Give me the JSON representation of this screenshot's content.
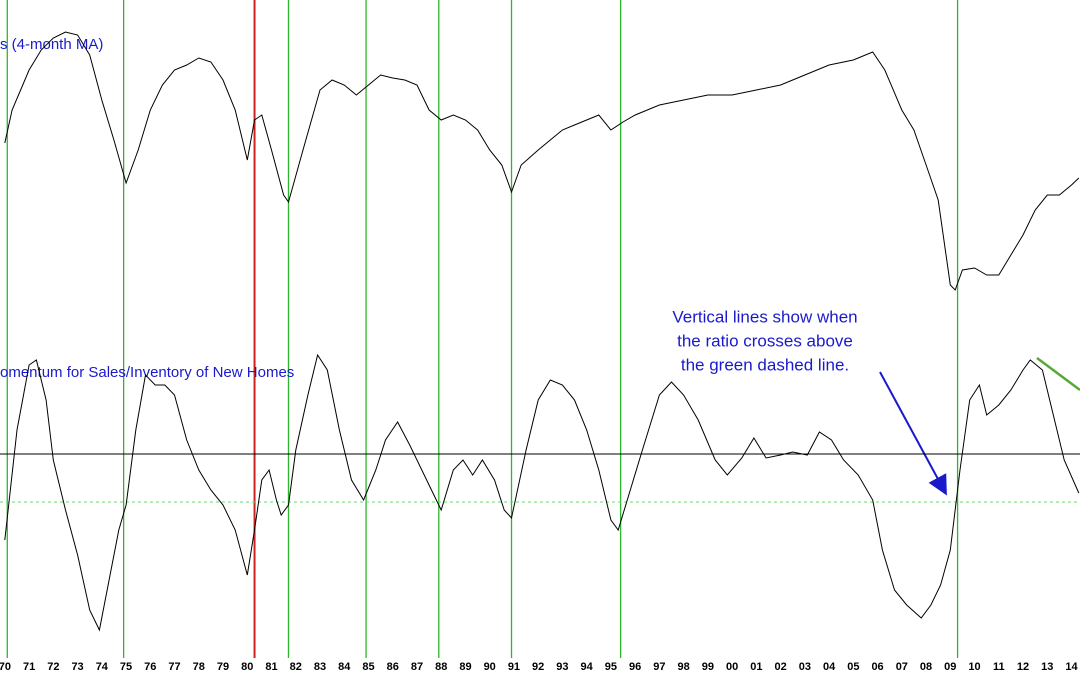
{
  "chart_data": [
    {
      "type": "line",
      "title": "s (4-month MA)",
      "color": "#000000",
      "xlim": [
        1969.8,
        2014.35
      ],
      "ylim": [
        0,
        300
      ],
      "x": [
        1970.0,
        1970.3,
        1971,
        1971.5,
        1972,
        1972.5,
        1973,
        1973.5,
        1974,
        1974.5,
        1975,
        1975.5,
        1976,
        1976.5,
        1977,
        1977.5,
        1978,
        1978.5,
        1979,
        1979.5,
        1980,
        1980.3,
        1980.6,
        1981,
        1981.5,
        1981.7,
        1982.3,
        1983,
        1983.5,
        1984,
        1984.5,
        1985,
        1985.5,
        1986,
        1986.5,
        1987,
        1987.5,
        1988,
        1988.5,
        1989,
        1989.5,
        1990,
        1990.5,
        1990.9,
        1991.3,
        1992,
        1992.5,
        1993,
        1993.5,
        1994,
        1994.5,
        1995,
        1995.5,
        1996,
        1997,
        1998,
        1999,
        2000,
        2001,
        2002,
        2003,
        2004,
        2005,
        2005.8,
        2006.3,
        2007,
        2007.5,
        2008,
        2008.5,
        2009,
        2009.2,
        2009.5,
        2010,
        2010.5,
        2011,
        2011.5,
        2012,
        2012.5,
        2013,
        2013.5,
        2014,
        2014.3
      ],
      "values": [
        157,
        190,
        230,
        250,
        262,
        268,
        265,
        245,
        200,
        160,
        117,
        150,
        190,
        215,
        230,
        235,
        242,
        238,
        220,
        190,
        140,
        180,
        185,
        150,
        105,
        98,
        150,
        210,
        220,
        215,
        205,
        215,
        225,
        222,
        220,
        215,
        190,
        180,
        185,
        180,
        170,
        150,
        135,
        108,
        135,
        150,
        160,
        170,
        175,
        180,
        185,
        170,
        178,
        185,
        195,
        200,
        205,
        205,
        210,
        215,
        225,
        235,
        240,
        248,
        230,
        190,
        170,
        135,
        100,
        15,
        10,
        30,
        32,
        25,
        25,
        45,
        65,
        90,
        105,
        105,
        115,
        122
      ],
      "vertical_lines": [
        {
          "x": 1970.1,
          "color": "#2db52d"
        },
        {
          "x": 1974.9,
          "color": "#2db52d"
        },
        {
          "x": 1980.3,
          "color": "#cc2222"
        },
        {
          "x": 1981.7,
          "color": "#2db52d"
        },
        {
          "x": 1984.9,
          "color": "#2db52d"
        },
        {
          "x": 1987.9,
          "color": "#2db52d"
        },
        {
          "x": 1990.9,
          "color": "#2db52d"
        },
        {
          "x": 1995.4,
          "color": "#2db52d"
        },
        {
          "x": 2009.3,
          "color": "#2db52d"
        }
      ]
    },
    {
      "type": "line",
      "title": "omentum for Sales/Inventory of New Homes",
      "color": "#000000",
      "annotation": [
        "Vertical lines show when",
        "the ratio crosses above",
        "the green dashed line."
      ],
      "xlim": [
        1969.8,
        2014.35
      ],
      "ylim": [
        0,
        330
      ],
      "x": [
        1970.0,
        1970.5,
        1971,
        1971.3,
        1971.7,
        1972,
        1972.5,
        1973,
        1973.5,
        1973.9,
        1974.3,
        1974.7,
        1975,
        1975.4,
        1975.8,
        1976.2,
        1976.6,
        1977,
        1977.5,
        1978,
        1978.5,
        1979,
        1979.5,
        1980,
        1980.3,
        1980.6,
        1980.9,
        1981.2,
        1981.4,
        1981.7,
        1982,
        1982.5,
        1982.9,
        1983.3,
        1983.8,
        1984.3,
        1984.8,
        1985.3,
        1985.7,
        1986.2,
        1986.7,
        1987.2,
        1987.7,
        1988,
        1988.5,
        1988.9,
        1989.3,
        1989.7,
        1990.2,
        1990.6,
        1990.9,
        1991.5,
        1992,
        1992.5,
        1993,
        1993.5,
        1994,
        1994.5,
        1995,
        1995.3,
        1995.8,
        1996.3,
        1997,
        1997.5,
        1998,
        1998.6,
        1999.3,
        1999.8,
        2000.4,
        2000.9,
        2001.4,
        2002,
        2002.5,
        2003.1,
        2003.6,
        2004.1,
        2004.6,
        2005.2,
        2005.8,
        2006.2,
        2006.7,
        2007.2,
        2007.8,
        2008.2,
        2008.6,
        2009,
        2009.4,
        2009.8,
        2010.2,
        2010.5,
        2011,
        2011.5,
        2012,
        2012.3,
        2012.8,
        2013.2,
        2013.7,
        2014.3
      ],
      "values": [
        110,
        220,
        285,
        290,
        250,
        190,
        140,
        95,
        40,
        20,
        70,
        120,
        145,
        220,
        275,
        265,
        265,
        255,
        210,
        180,
        160,
        145,
        120,
        75,
        120,
        170,
        180,
        150,
        135,
        145,
        200,
        255,
        295,
        280,
        220,
        170,
        150,
        180,
        210,
        228,
        205,
        180,
        155,
        140,
        180,
        190,
        175,
        190,
        170,
        140,
        132,
        200,
        250,
        270,
        265,
        250,
        220,
        180,
        130,
        120,
        160,
        200,
        255,
        268,
        255,
        230,
        190,
        175,
        192,
        212,
        192,
        195,
        198,
        195,
        218,
        210,
        190,
        175,
        150,
        100,
        60,
        45,
        32,
        45,
        65,
        100,
        180,
        250,
        265,
        235,
        245,
        260,
        280,
        290,
        280,
        240,
        190,
        157
      ],
      "reference_lines": [
        {
          "value": 196,
          "color": "#000000",
          "dashed": false
        },
        {
          "value": 148,
          "color": "#66dd66",
          "dashed": true
        }
      ],
      "xticks": [
        {
          "value": 1970,
          "label": "70"
        },
        {
          "value": 1971,
          "label": "71"
        },
        {
          "value": 1972,
          "label": "72"
        },
        {
          "value": 1973,
          "label": "73"
        },
        {
          "value": 1974,
          "label": "74"
        },
        {
          "value": 1975,
          "label": "75"
        },
        {
          "value": 1976,
          "label": "76"
        },
        {
          "value": 1977,
          "label": "77"
        },
        {
          "value": 1978,
          "label": "78"
        },
        {
          "value": 1979,
          "label": "79"
        },
        {
          "value": 1980,
          "label": "80"
        },
        {
          "value": 1981,
          "label": "81"
        },
        {
          "value": 1982,
          "label": "82"
        },
        {
          "value": 1983,
          "label": "83"
        },
        {
          "value": 1984,
          "label": "84"
        },
        {
          "value": 1985,
          "label": "85"
        },
        {
          "value": 1986,
          "label": "86"
        },
        {
          "value": 1987,
          "label": "87"
        },
        {
          "value": 1988,
          "label": "88"
        },
        {
          "value": 1989,
          "label": "89"
        },
        {
          "value": 1990,
          "label": "90"
        },
        {
          "value": 1991,
          "label": "91"
        },
        {
          "value": 1992,
          "label": "92"
        },
        {
          "value": 1993,
          "label": "93"
        },
        {
          "value": 1994,
          "label": "94"
        },
        {
          "value": 1995,
          "label": "95"
        },
        {
          "value": 1996,
          "label": "96"
        },
        {
          "value": 1997,
          "label": "97"
        },
        {
          "value": 1998,
          "label": "98"
        },
        {
          "value": 1999,
          "label": "99"
        },
        {
          "value": 2000,
          "label": "00"
        },
        {
          "value": 2001,
          "label": "01"
        },
        {
          "value": 2002,
          "label": "02"
        },
        {
          "value": 2003,
          "label": "03"
        },
        {
          "value": 2004,
          "label": "04"
        },
        {
          "value": 2005,
          "label": "05"
        },
        {
          "value": 2006,
          "label": "06"
        },
        {
          "value": 2007,
          "label": "07"
        },
        {
          "value": 2008,
          "label": "08"
        },
        {
          "value": 2009,
          "label": "09"
        },
        {
          "value": 2010,
          "label": "10"
        },
        {
          "value": 2011,
          "label": "11"
        },
        {
          "value": 2012,
          "label": "12"
        },
        {
          "value": 2013,
          "label": "13"
        },
        {
          "value": 2014,
          "label": "14"
        }
      ]
    }
  ]
}
